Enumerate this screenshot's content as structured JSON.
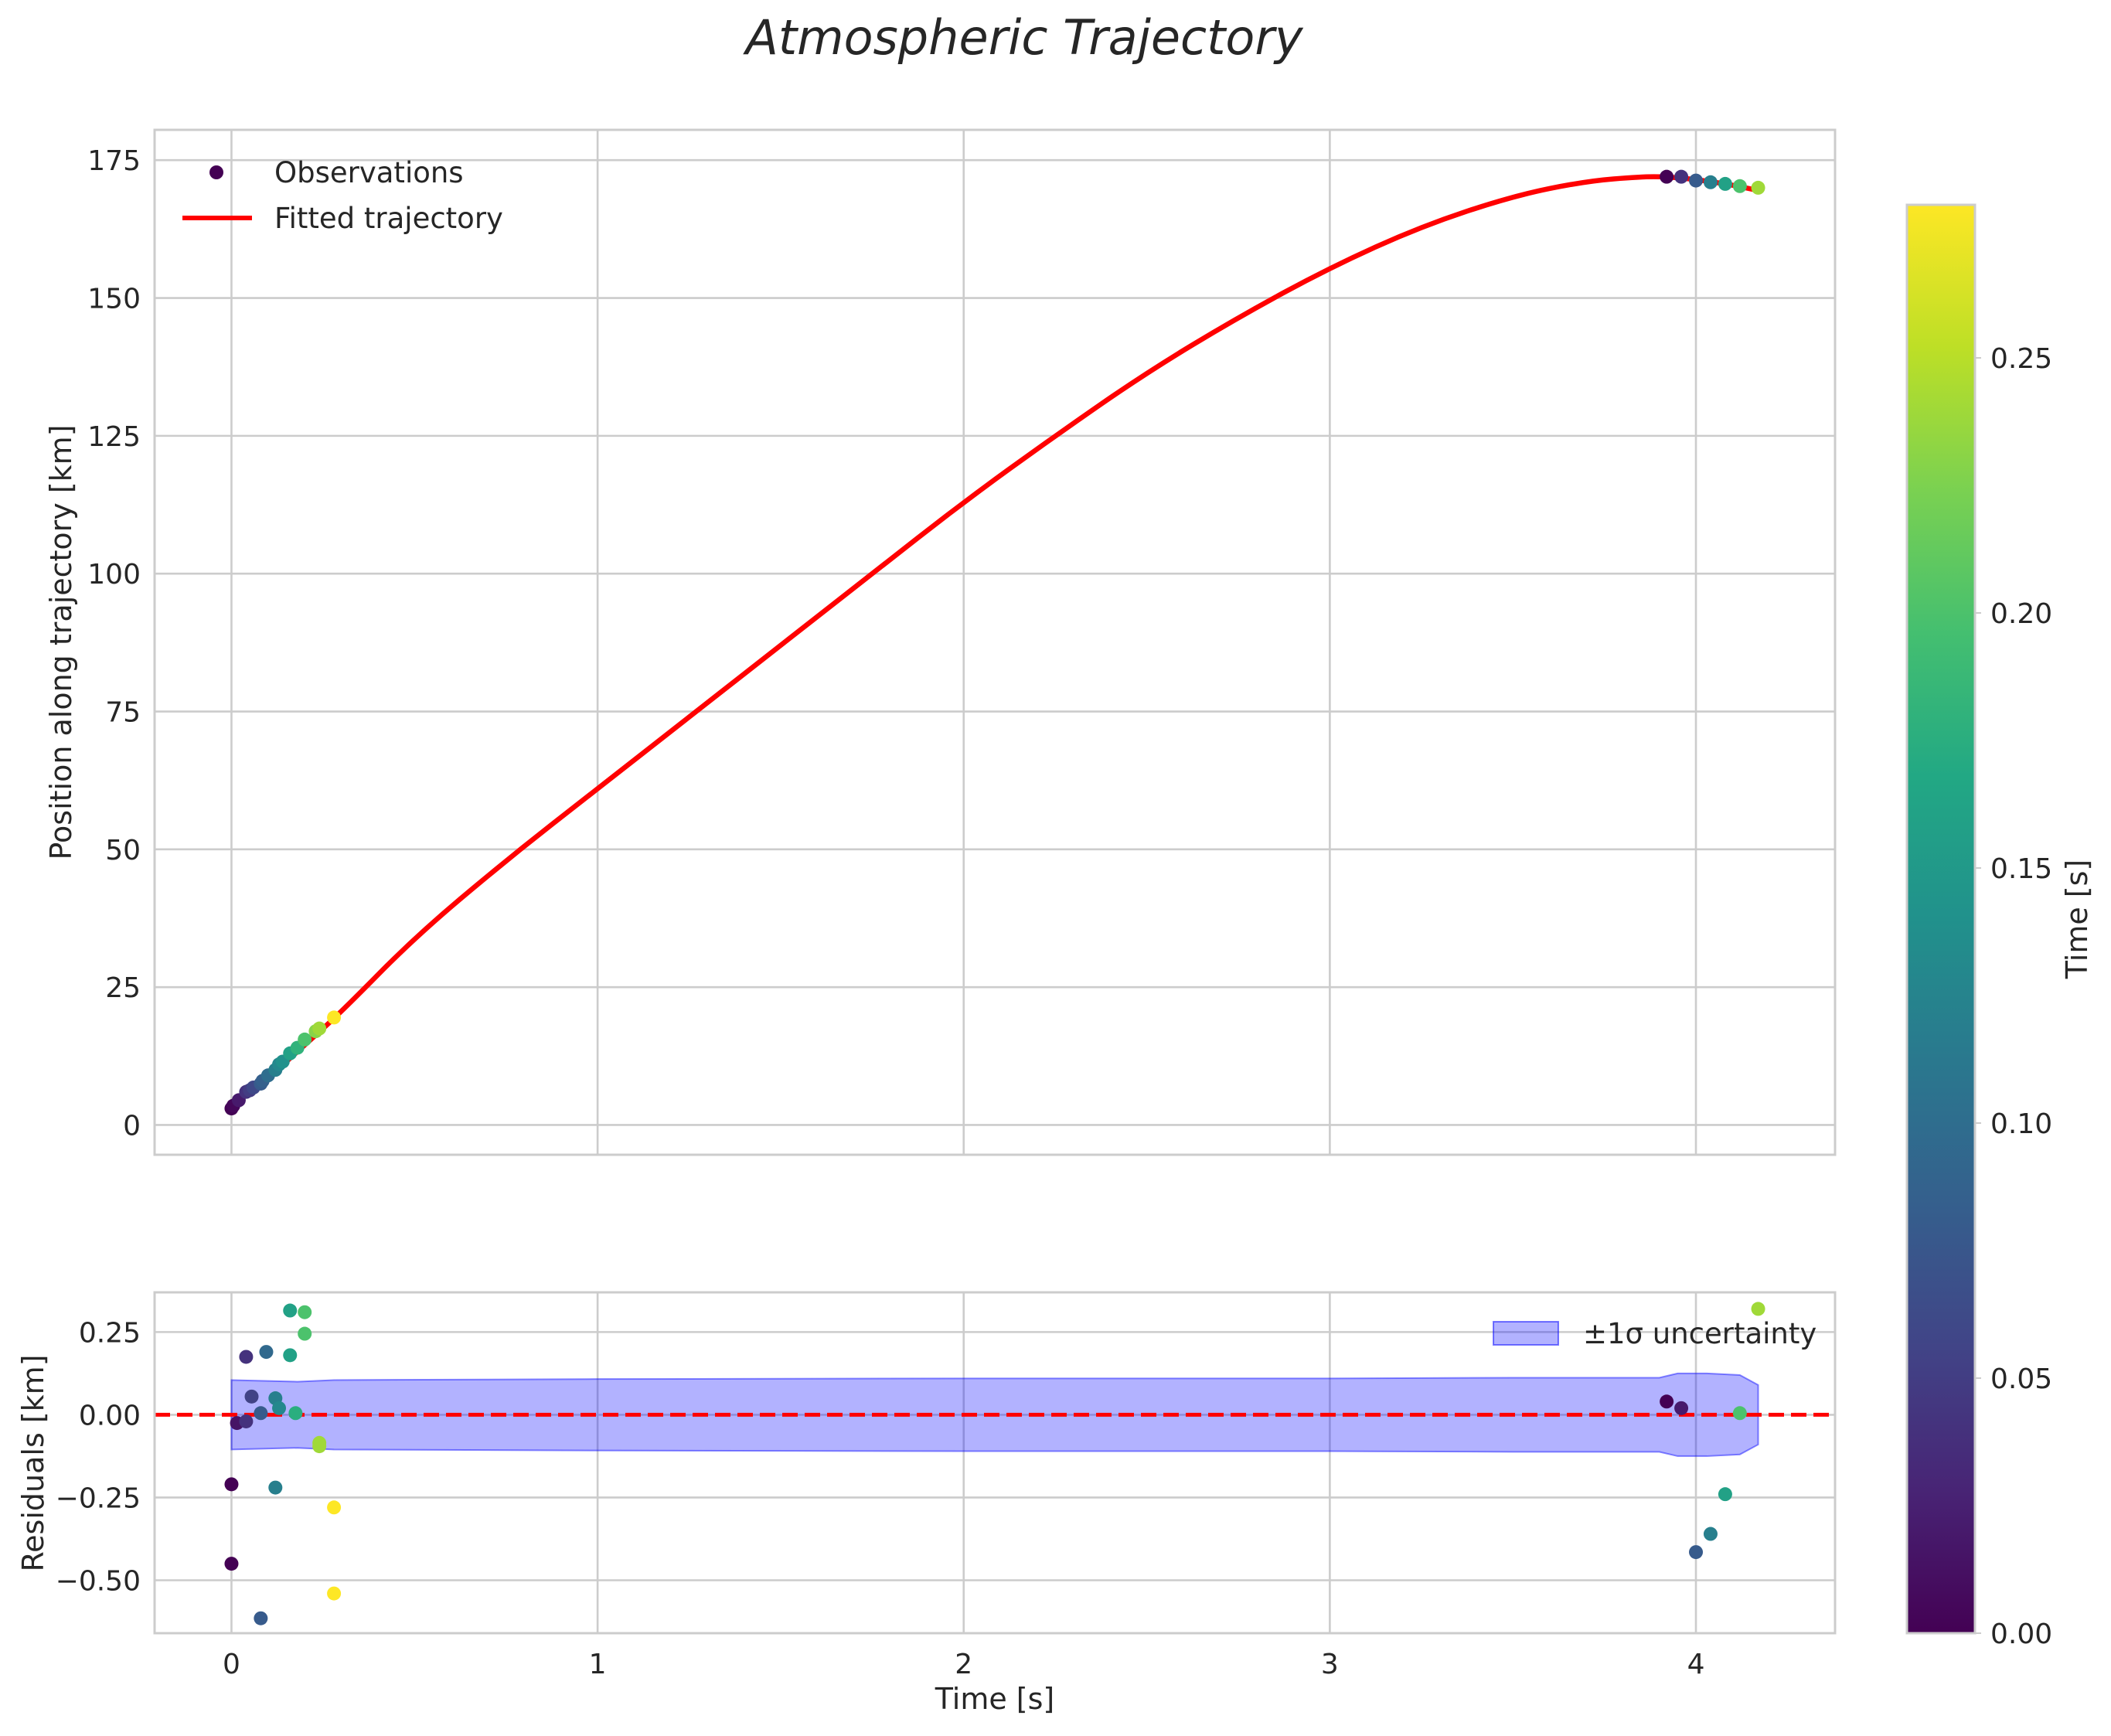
{
  "chart_data": [
    {
      "type": "scatter",
      "panel": "trajectory",
      "title": "Atmospheric Trajectory",
      "xlabel": "",
      "ylabel": "Position along trajectory [km]",
      "xlim": [
        -0.21,
        4.38
      ],
      "ylim": [
        -5.4,
        180.5
      ],
      "xticks": [
        0,
        1,
        2,
        3,
        4
      ],
      "xtick_labels": [
        "0",
        "1",
        "2",
        "3",
        "4"
      ],
      "yticks": [
        0,
        25,
        50,
        75,
        100,
        125,
        150,
        175
      ],
      "ytick_labels": [
        "0",
        "25",
        "50",
        "75",
        "100",
        "125",
        "150",
        "175"
      ],
      "grid": true,
      "legend": {
        "placement": "top-left",
        "entries": [
          "Observations",
          "Fitted trajectory"
        ]
      },
      "fitted_trajectory": {
        "name": "Fitted trajectory",
        "color": "#ff0000",
        "x": [
          0.0,
          0.1,
          0.2,
          0.3,
          0.5,
          0.75,
          1.0,
          1.25,
          1.5,
          1.75,
          2.0,
          2.25,
          2.5,
          2.75,
          3.0,
          3.25,
          3.5,
          3.7,
          3.85,
          3.92,
          4.0,
          4.1,
          4.17
        ],
        "y": [
          3.5,
          8.5,
          14.5,
          20.5,
          34.0,
          48.0,
          61.0,
          74.0,
          87.0,
          100.0,
          113.0,
          125.0,
          136.5,
          146.5,
          155.5,
          163.0,
          168.5,
          171.2,
          172.0,
          172.0,
          171.5,
          170.5,
          169.5
        ]
      },
      "observations": {
        "name": "Observations",
        "x": [
          0.0,
          0.005,
          0.02,
          0.04,
          0.05,
          0.06,
          0.08,
          0.085,
          0.1,
          0.12,
          0.13,
          0.14,
          0.16,
          0.18,
          0.2,
          0.23,
          0.24,
          0.28,
          3.92,
          3.96,
          4.0,
          4.04,
          4.08,
          4.12,
          4.17
        ],
        "y": [
          3.0,
          3.5,
          4.5,
          6.0,
          6.3,
          6.8,
          7.5,
          8.0,
          9.0,
          10.0,
          11.0,
          11.5,
          13.0,
          14.0,
          15.5,
          17.0,
          17.5,
          19.5,
          172.0,
          172.0,
          171.3,
          171.0,
          170.7,
          170.3,
          170.0
        ],
        "color_value": [
          0.0,
          0.005,
          0.02,
          0.04,
          0.05,
          0.06,
          0.08,
          0.085,
          0.1,
          0.12,
          0.13,
          0.14,
          0.16,
          0.18,
          0.2,
          0.23,
          0.24,
          0.28,
          0.0,
          0.04,
          0.08,
          0.12,
          0.16,
          0.2,
          0.24
        ]
      }
    },
    {
      "type": "scatter",
      "panel": "residuals",
      "xlabel": "Time [s]",
      "ylabel": "Residuals [km]",
      "xlim": [
        -0.21,
        4.38
      ],
      "ylim": [
        -0.66,
        0.37
      ],
      "xticks": [
        0,
        1,
        2,
        3,
        4
      ],
      "xtick_labels": [
        "0",
        "1",
        "2",
        "3",
        "4"
      ],
      "yticks": [
        -0.5,
        -0.25,
        0.0,
        0.25
      ],
      "ytick_labels": [
        "−0.50",
        "−0.25",
        "0.00",
        "0.25"
      ],
      "grid": true,
      "legend": {
        "placement": "top-right",
        "entries": [
          "±1σ uncertainty"
        ]
      },
      "zero_line": {
        "y": 0.0,
        "color": "#ff0000",
        "style": "dashed"
      },
      "uncertainty_band": {
        "name": "±1σ uncertainty",
        "color": "#0000ff",
        "x": [
          0.0,
          0.18,
          0.28,
          1.0,
          2.0,
          3.0,
          3.5,
          3.9,
          3.95,
          4.03,
          4.12,
          4.17
        ],
        "upper": [
          0.105,
          0.1,
          0.105,
          0.108,
          0.11,
          0.11,
          0.112,
          0.112,
          0.125,
          0.125,
          0.12,
          0.09
        ],
        "lower": [
          -0.105,
          -0.1,
          -0.105,
          -0.108,
          -0.11,
          -0.11,
          -0.112,
          -0.112,
          -0.125,
          -0.125,
          -0.12,
          -0.09
        ]
      },
      "points": {
        "x": [
          0.0,
          0.0,
          0.015,
          0.04,
          0.04,
          0.055,
          0.08,
          0.08,
          0.095,
          0.12,
          0.12,
          0.13,
          0.16,
          0.16,
          0.175,
          0.2,
          0.2,
          0.24,
          0.24,
          0.28,
          0.28,
          3.92,
          3.96,
          4.0,
          4.04,
          4.08,
          4.12,
          4.17
        ],
        "y": [
          -0.45,
          -0.21,
          -0.025,
          0.175,
          -0.02,
          0.055,
          0.005,
          -0.615,
          0.19,
          0.05,
          -0.22,
          0.02,
          0.315,
          0.18,
          0.005,
          0.245,
          0.31,
          -0.085,
          -0.095,
          -0.28,
          -0.54,
          0.04,
          0.02,
          -0.415,
          -0.36,
          -0.24,
          0.005,
          0.32
        ],
        "color_value": [
          0.0,
          0.0,
          0.015,
          0.04,
          0.04,
          0.055,
          0.08,
          0.08,
          0.095,
          0.12,
          0.12,
          0.13,
          0.16,
          0.16,
          0.175,
          0.2,
          0.2,
          0.24,
          0.24,
          0.28,
          0.28,
          0.0,
          0.02,
          0.08,
          0.12,
          0.16,
          0.2,
          0.24
        ]
      }
    }
  ],
  "colorbar": {
    "label": "Time [s]",
    "range": [
      0.0,
      0.28
    ],
    "ticks": [
      0.0,
      0.05,
      0.1,
      0.15,
      0.2,
      0.25
    ],
    "tick_labels": [
      "0.00",
      "0.05",
      "0.10",
      "0.15",
      "0.20",
      "0.25"
    ],
    "colormap": "viridis"
  }
}
